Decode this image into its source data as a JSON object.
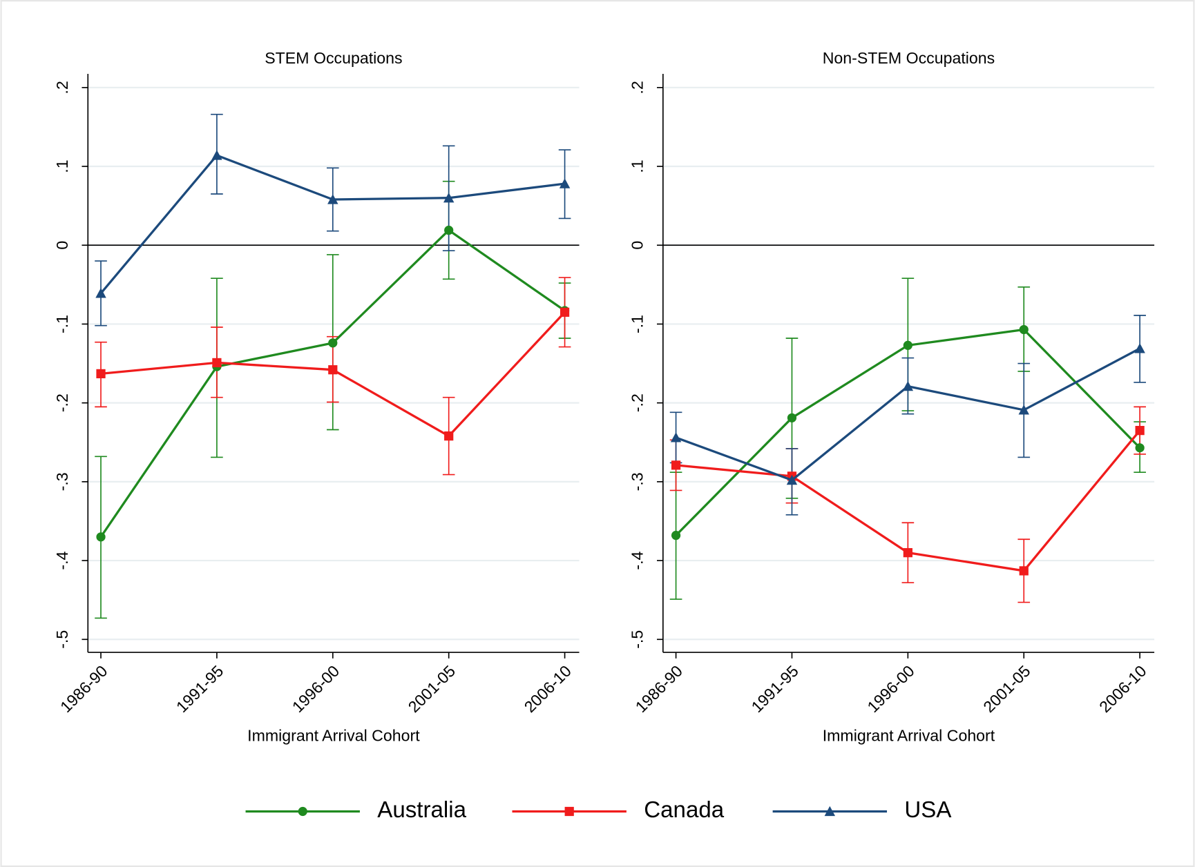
{
  "chart_data": [
    {
      "type": "line",
      "title": "STEM Occupations",
      "x_label": "Immigrant Arrival Cohort",
      "categories": [
        "1986-90",
        "1991-95",
        "1996-00",
        "2001-05",
        "2006-10"
      ],
      "ylim": [
        -0.5,
        0.2
      ],
      "yticks": [
        {
          "value": 0.2,
          "label": ".2"
        },
        {
          "value": 0.1,
          "label": ".1"
        },
        0,
        {
          "value": -0.1,
          "label": "-.1"
        },
        {
          "value": -0.2,
          "label": "-.2"
        },
        {
          "value": -0.3,
          "label": "-.3"
        },
        {
          "value": -0.4,
          "label": "-.4"
        },
        {
          "value": -0.5,
          "label": "-.5"
        }
      ],
      "grid": true,
      "reference_line": 0,
      "series": [
        {
          "name": "Australia",
          "color": "#1f8a1f",
          "marker": "circle",
          "values": [
            -0.37,
            -0.154,
            -0.124,
            0.019,
            -0.083
          ],
          "ci_low": [
            -0.473,
            -0.269,
            -0.234,
            -0.043,
            -0.118
          ],
          "ci_high": [
            -0.268,
            -0.042,
            -0.012,
            0.081,
            -0.048
          ]
        },
        {
          "name": "Canada",
          "color": "#f01c1c",
          "marker": "square",
          "values": [
            -0.163,
            -0.149,
            -0.158,
            -0.242,
            -0.085
          ],
          "ci_low": [
            -0.205,
            -0.193,
            -0.199,
            -0.291,
            -0.129
          ],
          "ci_high": [
            -0.123,
            -0.104,
            -0.116,
            -0.193,
            -0.041
          ]
        },
        {
          "name": "USA",
          "color": "#1c4a7c",
          "marker": "triangle",
          "values": [
            -0.061,
            0.114,
            0.058,
            0.06,
            0.078
          ],
          "ci_low": [
            -0.102,
            0.065,
            0.018,
            -0.007,
            0.034
          ],
          "ci_high": [
            -0.02,
            0.166,
            0.098,
            0.126,
            0.121
          ]
        }
      ]
    },
    {
      "type": "line",
      "title": "Non-STEM Occupations",
      "x_label": "Immigrant Arrival Cohort",
      "categories": [
        "1986-90",
        "1991-95",
        "1996-00",
        "2001-05",
        "2006-10"
      ],
      "ylim": [
        -0.5,
        0.2
      ],
      "yticks": [
        {
          "value": 0.2,
          "label": ".2"
        },
        {
          "value": 0.1,
          "label": ".1"
        },
        0,
        {
          "value": -0.1,
          "label": "-.1"
        },
        {
          "value": -0.2,
          "label": "-.2"
        },
        {
          "value": -0.3,
          "label": "-.3"
        },
        {
          "value": -0.4,
          "label": "-.4"
        },
        {
          "value": -0.5,
          "label": "-.5"
        }
      ],
      "grid": true,
      "reference_line": 0,
      "series": [
        {
          "name": "Australia",
          "color": "#1f8a1f",
          "marker": "circle",
          "values": [
            -0.368,
            -0.219,
            -0.127,
            -0.107,
            -0.257
          ],
          "ci_low": [
            -0.449,
            -0.321,
            -0.21,
            -0.16,
            -0.288
          ],
          "ci_high": [
            -0.288,
            -0.118,
            -0.042,
            -0.053,
            -0.224
          ]
        },
        {
          "name": "Canada",
          "color": "#f01c1c",
          "marker": "square",
          "values": [
            -0.279,
            -0.293,
            -0.39,
            -0.413,
            -0.235
          ],
          "ci_low": [
            -0.311,
            -0.327,
            -0.428,
            -0.453,
            -0.265
          ],
          "ci_high": [
            -0.247,
            -0.258,
            -0.352,
            -0.373,
            -0.205
          ]
        },
        {
          "name": "USA",
          "color": "#1c4a7c",
          "marker": "triangle",
          "values": [
            -0.244,
            -0.298,
            -0.179,
            -0.209,
            -0.131
          ],
          "ci_low": [
            -0.276,
            -0.342,
            -0.214,
            -0.269,
            -0.174
          ],
          "ci_high": [
            -0.212,
            -0.258,
            -0.143,
            -0.15,
            -0.089
          ]
        }
      ]
    }
  ]
}
